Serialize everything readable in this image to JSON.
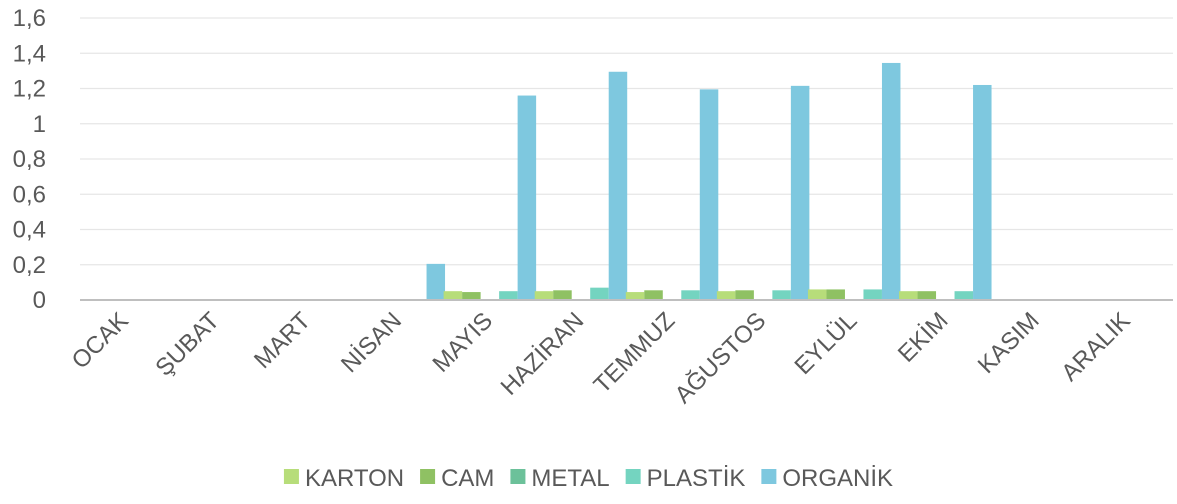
{
  "chart_data": {
    "type": "bar",
    "categories": [
      "OCAK",
      "ŞUBAT",
      "MART",
      "NİSAN",
      "MAYIS",
      "HAZİRAN",
      "TEMMUZ",
      "AĞUSTOS",
      "EYLÜL",
      "EKİM",
      "KASIM",
      "ARALIK"
    ],
    "series": [
      {
        "name": "KARTON",
        "color": "#b7dd7a",
        "values": [
          0,
          0,
          0,
          0,
          0.05,
          0.05,
          0.045,
          0.05,
          0.06,
          0.05,
          0,
          0
        ]
      },
      {
        "name": "CAM",
        "color": "#8fc163",
        "values": [
          0,
          0,
          0,
          0,
          0.045,
          0.055,
          0.055,
          0.055,
          0.06,
          0.05,
          0,
          0
        ]
      },
      {
        "name": "METAL",
        "color": "#6cc19a",
        "values": [
          0,
          0,
          0,
          0,
          0,
          0,
          0,
          0,
          0,
          0,
          0,
          0
        ]
      },
      {
        "name": "PLASTİK",
        "color": "#74d4c0",
        "values": [
          0,
          0,
          0,
          0,
          0.05,
          0.07,
          0.055,
          0.055,
          0.06,
          0.05,
          0,
          0
        ]
      },
      {
        "name": "ORGANİK",
        "color": "#7ec8df",
        "values": [
          0,
          0,
          0,
          0.205,
          1.16,
          1.295,
          1.195,
          1.215,
          1.345,
          1.22,
          0,
          0
        ]
      }
    ],
    "yticks": [
      "0",
      "0,2",
      "0,4",
      "0,6",
      "0,8",
      "1",
      "1,2",
      "1,4",
      "1,6"
    ],
    "ylim": [
      0,
      1.6
    ],
    "grid": true,
    "legend": "bottom",
    "title": "",
    "xlabel": "",
    "ylabel": ""
  }
}
